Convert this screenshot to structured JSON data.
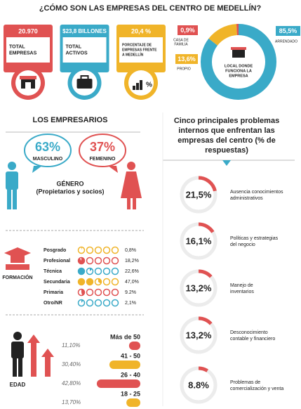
{
  "title": "¿CÓMO SON LAS EMPRESAS DEL CENTRO DE MEDELLÍN?",
  "cards": [
    {
      "value": "20.970",
      "label": [
        "TOTAL",
        "EMPRESAS"
      ],
      "color": "#e05252"
    },
    {
      "value": "$23,8 BILLONES",
      "label": [
        "TOTAL",
        "ACTIVOS"
      ],
      "color": "#3aaac8"
    },
    {
      "value": "20,4 %",
      "label": [
        "PORCENTAJE DE",
        "EMPRESAS FRENTE",
        "A MEDELLÍN"
      ],
      "color": "#f0b429"
    }
  ],
  "local": {
    "label": [
      "LOCAL DONDE",
      "FUNCIONA LA",
      "EMPRESA"
    ],
    "segments": [
      {
        "label": "13,6%",
        "value": 13.6,
        "name": [
          "PROPIO"
        ],
        "color": "#f0b429"
      },
      {
        "label": "0,9%",
        "value": 0.9,
        "name": [
          "CASA DE",
          "FAMILIA"
        ],
        "color": "#e05252"
      },
      {
        "label": "85,5%",
        "value": 85.5,
        "name": [
          "ARRENDADO"
        ],
        "color": "#3aaac8"
      }
    ]
  },
  "empresarios": {
    "title": "LOS EMPRESARIOS",
    "gender": [
      {
        "label": "63%",
        "name": "MASCULINO",
        "color": "#3aaac8"
      },
      {
        "label": "37%",
        "name": "FEMENINO",
        "color": "#e05252"
      }
    ],
    "caption": [
      "GÉNERO",
      "(Propietarios y socios)"
    ]
  },
  "problems": {
    "title": [
      "Cinco principales problemas",
      "internos que enfrentan las",
      "empresas del centro (% de",
      "respuestas)"
    ],
    "items": [
      {
        "label": "21,5%",
        "value": 21.5,
        "text": [
          "Ausencia conocimientos",
          "administrativos"
        ]
      },
      {
        "label": "16,1%",
        "value": 16.1,
        "text": [
          "Políticas y estrategias",
          "del negocio"
        ]
      },
      {
        "label": "13,2%",
        "value": 13.2,
        "text": [
          "Manejo de",
          "inventarios"
        ]
      },
      {
        "label": "13,2%",
        "value": 13.2,
        "text": [
          "Desconocimiento",
          "contable y financiero"
        ]
      },
      {
        "label": "8.8%",
        "value": 8.8,
        "text": [
          "Problemas de",
          "comercialización y venta"
        ]
      }
    ]
  },
  "formacion": {
    "title": "FORMACIÓN",
    "rows": [
      {
        "name": "Posgrado",
        "label": "0,8%",
        "value": 0.8,
        "color": "#f0b429"
      },
      {
        "name": "Profesional",
        "label": "18,2%",
        "value": 18.2,
        "color": "#e05252"
      },
      {
        "name": "Técnica",
        "label": "22,6%",
        "value": 22.6,
        "color": "#3aaac8"
      },
      {
        "name": "Secundaria",
        "label": "47,0%",
        "value": 47.0,
        "color": "#f0b429"
      },
      {
        "name": "Primaria",
        "label": "9.2%",
        "value": 9.2,
        "color": "#e05252"
      },
      {
        "name": "Otro/NR",
        "label": "2,1%",
        "value": 2.1,
        "color": "#3aaac8"
      }
    ]
  },
  "edad": {
    "title": "EDAD",
    "rows": [
      {
        "name": "Más de 50",
        "label": "11,10%",
        "value": 11.1,
        "color": "#e05252"
      },
      {
        "name": "41 - 50",
        "label": "30,40%",
        "value": 30.4,
        "color": "#f0b429"
      },
      {
        "name": "26 - 40",
        "label": "42,80%",
        "value": 42.8,
        "color": "#e05252"
      },
      {
        "name": "18 - 25",
        "label": "13,70%",
        "value": 13.7,
        "color": "#f0b429"
      }
    ]
  }
}
